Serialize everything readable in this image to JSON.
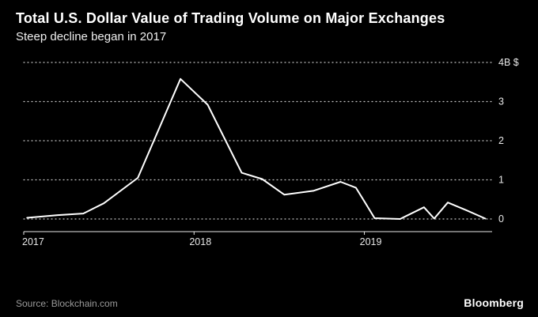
{
  "header": {
    "title": "Total U.S. Dollar Value of Trading Volume on Major Exchanges",
    "subtitle": "Steep decline began in 2017"
  },
  "footer": {
    "source": "Source: Blockchain.com",
    "brand": "Bloomberg"
  },
  "chart_data": {
    "type": "line",
    "title": "Total U.S. Dollar Value of Trading Volume on Major Exchanges",
    "subtitle": "Steep decline began in 2017",
    "series_name": "Trading volume (USD, billions)",
    "x": [
      2017.02,
      2017.2,
      2017.35,
      2017.47,
      2017.67,
      2017.92,
      2018.08,
      2018.28,
      2018.4,
      2018.53,
      2018.7,
      2018.86,
      2018.95,
      2019.0,
      2019.06,
      2019.21,
      2019.35,
      2019.41,
      2019.49,
      2019.6,
      2019.71
    ],
    "values": [
      0.03,
      0.1,
      0.14,
      0.4,
      1.05,
      3.58,
      2.92,
      1.18,
      1.02,
      0.62,
      0.72,
      0.95,
      0.8,
      0.45,
      0.02,
      0.0,
      0.3,
      0.01,
      0.42,
      0.22,
      0.01
    ],
    "xlim": [
      2017.0,
      2019.75
    ],
    "ylim": [
      0,
      4
    ],
    "x_ticks": [
      {
        "value": 2017,
        "label": "2017"
      },
      {
        "value": 2018,
        "label": "2018"
      },
      {
        "value": 2019,
        "label": "2019"
      }
    ],
    "y_ticks": [
      {
        "value": 0,
        "label": "0"
      },
      {
        "value": 1,
        "label": "1"
      },
      {
        "value": 2,
        "label": "2"
      },
      {
        "value": 3,
        "label": "3"
      },
      {
        "value": 4,
        "label": "4B $"
      }
    ],
    "grid": "dotted-horizontal",
    "legend": "none",
    "line_color": "#ffffff",
    "grid_color": "#c8c8c8",
    "axis_color": "#e8e8e8",
    "tick_label_color": "#e8e8e8",
    "background": "#000000"
  }
}
